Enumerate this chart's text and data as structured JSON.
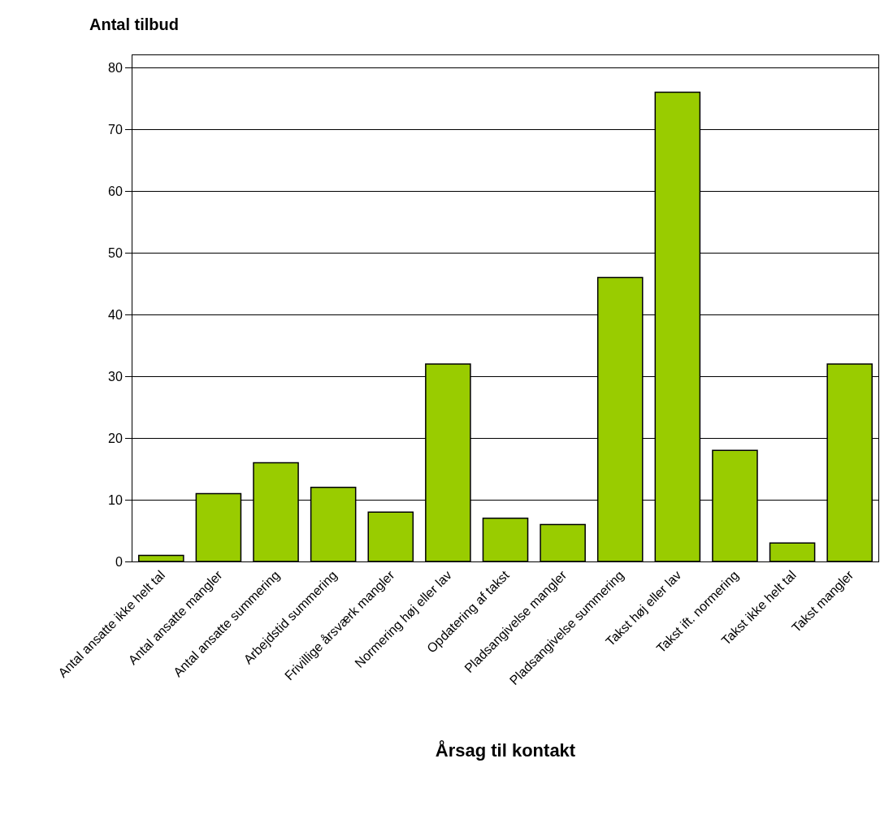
{
  "chart_data": {
    "type": "bar",
    "ylabel": "Antal tilbud",
    "xlabel": "Årsag til kontakt",
    "categories": [
      "Antal ansatte ikke helt tal",
      "Antal ansatte mangler",
      "Antal ansatte summering",
      "Arbejdstid summering",
      "Frivillige årsværk mangler",
      "Normering høj eller lav",
      "Opdatering af takst",
      "Pladsangivelse mangler",
      "Pladsangivelse summering",
      "Takst høj eller lav",
      "Takst ift. normering",
      "Takst ikke helt tal",
      "Takst mangler"
    ],
    "values": [
      1,
      11,
      16,
      12,
      8,
      32,
      7,
      6,
      46,
      76,
      18,
      3,
      32
    ],
    "color": "#99cc00",
    "ylim": [
      0,
      82
    ],
    "yticks": [
      0,
      10,
      20,
      30,
      40,
      50,
      60,
      70,
      80
    ],
    "grid": "y"
  }
}
